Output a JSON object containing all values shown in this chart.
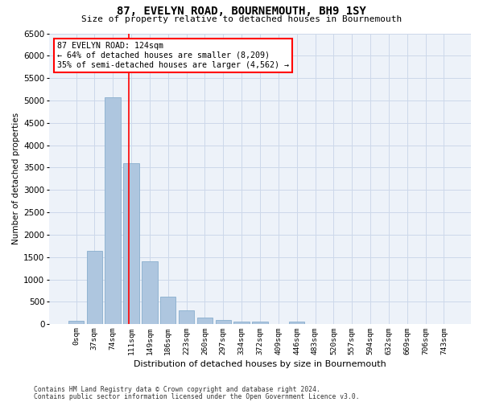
{
  "title": "87, EVELYN ROAD, BOURNEMOUTH, BH9 1SY",
  "subtitle": "Size of property relative to detached houses in Bournemouth",
  "xlabel": "Distribution of detached houses by size in Bournemouth",
  "ylabel": "Number of detached properties",
  "footer_line1": "Contains HM Land Registry data © Crown copyright and database right 2024.",
  "footer_line2": "Contains public sector information licensed under the Open Government Licence v3.0.",
  "bar_labels": [
    "0sqm",
    "37sqm",
    "74sqm",
    "111sqm",
    "149sqm",
    "186sqm",
    "223sqm",
    "260sqm",
    "297sqm",
    "334sqm",
    "372sqm",
    "409sqm",
    "446sqm",
    "483sqm",
    "520sqm",
    "557sqm",
    "594sqm",
    "632sqm",
    "669sqm",
    "706sqm",
    "743sqm"
  ],
  "bar_values": [
    70,
    1640,
    5080,
    3590,
    1400,
    615,
    305,
    155,
    90,
    55,
    50,
    0,
    55,
    0,
    0,
    0,
    0,
    0,
    0,
    0,
    0
  ],
  "bar_color": "#aec6df",
  "bar_edgecolor": "#88aece",
  "grid_color": "#ccd8ea",
  "background_color": "#edf2f9",
  "annotation_title": "87 EVELYN ROAD: 124sqm",
  "annotation_line1": "← 64% of detached houses are smaller (8,209)",
  "annotation_line2": "35% of semi-detached houses are larger (4,562) →",
  "ylim": [
    0,
    6500
  ],
  "yticks": [
    0,
    500,
    1000,
    1500,
    2000,
    2500,
    3000,
    3500,
    4000,
    4500,
    5000,
    5500,
    6000,
    6500
  ]
}
